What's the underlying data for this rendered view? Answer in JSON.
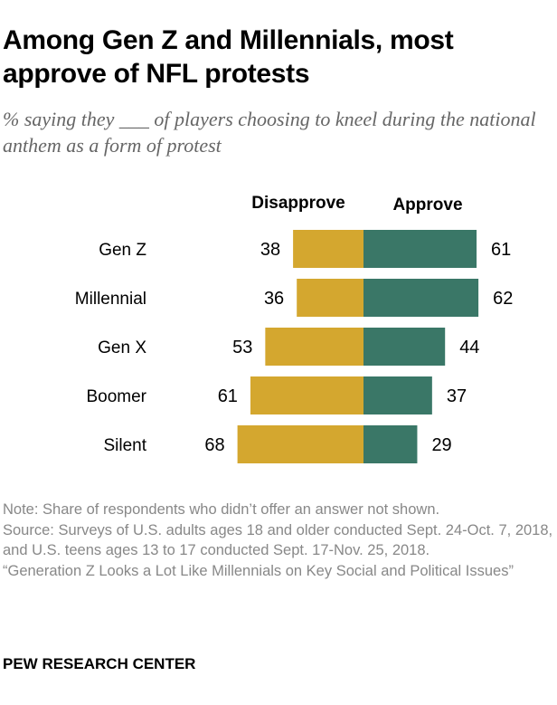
{
  "title": "Among Gen Z and Millennials, most approve of NFL protests",
  "subtitle": "% saying they ___ of players choosing to kneel during the national anthem as a form of protest",
  "chart_data": {
    "type": "bar",
    "orientation": "horizontal-diverging",
    "categories": [
      "Gen Z",
      "Millennial",
      "Gen X",
      "Boomer",
      "Silent"
    ],
    "series": [
      {
        "name": "Disapprove",
        "values": [
          38,
          36,
          53,
          61,
          68
        ],
        "color": "#D4A72F"
      },
      {
        "name": "Approve",
        "values": [
          61,
          62,
          44,
          37,
          29
        ],
        "color": "#3A7767"
      }
    ],
    "legend": "top",
    "grid": false
  },
  "notes": [
    "Note: Share of respondents who didn’t offer an answer not shown.",
    "Source: Surveys of U.S. adults ages 18 and older conducted Sept. 24-Oct. 7, 2018, and U.S. teens ages 13 to 17 conducted Sept. 17-Nov. 25, 2018.",
    "“Generation Z Looks a Lot Like Millennials on Key Social and Political Issues”"
  ],
  "source_org": "PEW RESEARCH CENTER"
}
